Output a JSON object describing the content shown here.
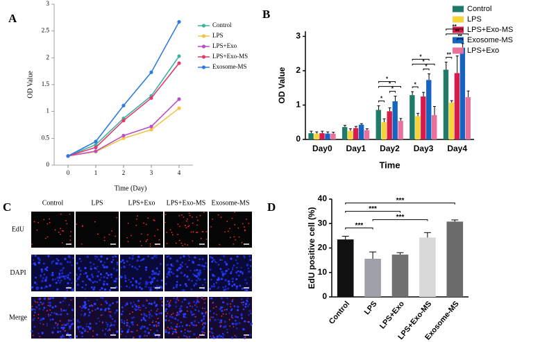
{
  "chart_data": [
    {
      "type": "line",
      "panel": "A",
      "x_label": "Time (Day)",
      "y_label": "OD Value",
      "x": [
        0,
        1,
        2,
        3,
        4
      ],
      "xlim": [
        -0.5,
        4.5
      ],
      "xticks": [
        0,
        1,
        2,
        3,
        4
      ],
      "ylim": [
        0,
        3
      ],
      "yticks": [
        0,
        0.5,
        1,
        1.5,
        2,
        2.5,
        3
      ],
      "legend": "upper-left",
      "series": [
        {
          "name": "Control",
          "color": "#3cb3a0",
          "values": [
            0.17,
            0.38,
            0.87,
            1.29,
            2.03
          ]
        },
        {
          "name": "LPS",
          "color": "#f5c242",
          "values": [
            0.17,
            0.25,
            0.5,
            0.66,
            1.06
          ]
        },
        {
          "name": "LPS+Exo",
          "color": "#b94fc4",
          "values": [
            0.17,
            0.26,
            0.55,
            0.72,
            1.23
          ]
        },
        {
          "name": "LPS+Exo-MS",
          "color": "#e23a6a",
          "values": [
            0.17,
            0.33,
            0.83,
            1.25,
            1.9
          ]
        },
        {
          "name": "Exosome-MS",
          "color": "#2e7be0",
          "values": [
            0.17,
            0.44,
            1.11,
            1.73,
            2.67
          ]
        }
      ]
    },
    {
      "type": "grouped-bar",
      "panel": "B",
      "x_label": "Time",
      "y_label": "OD Value",
      "categories": [
        "Day0",
        "Day1",
        "Day2",
        "Day3",
        "Day4"
      ],
      "ylim": [
        0,
        3.15
      ],
      "yticks": [
        0,
        1,
        2,
        3
      ],
      "legend": "upper-right",
      "series": [
        {
          "name": "Control",
          "color": "#1f7a68",
          "values": [
            0.18,
            0.36,
            0.86,
            1.29,
            2.03
          ],
          "errors": [
            0.06,
            0.05,
            0.12,
            0.1,
            0.22
          ]
        },
        {
          "name": "LPS",
          "color": "#f5d33a",
          "values": [
            0.17,
            0.25,
            0.5,
            0.68,
            1.07
          ],
          "errors": [
            0.05,
            0.06,
            0.1,
            0.08,
            0.06
          ]
        },
        {
          "name": "LPS+Exo-MS",
          "color": "#d81b4a",
          "values": [
            0.18,
            0.33,
            0.82,
            1.25,
            1.93
          ],
          "errors": [
            0.06,
            0.05,
            0.1,
            0.12,
            0.5
          ]
        },
        {
          "name": "Exosome-MS",
          "color": "#1565c0",
          "values": [
            0.17,
            0.43,
            1.11,
            1.73,
            2.67
          ],
          "errors": [
            0.05,
            0.03,
            0.15,
            0.18,
            0.12
          ]
        },
        {
          "name": "LPS+Exo",
          "color": "#e8709a",
          "values": [
            0.17,
            0.27,
            0.54,
            0.71,
            1.23
          ],
          "errors": [
            0.04,
            0.04,
            0.07,
            0.25,
            0.18
          ]
        }
      ],
      "brackets": [
        {
          "text": "*",
          "category": "Day2",
          "from": "LPS+Exo-MS",
          "to": "Exosome-MS"
        },
        {
          "text": "*",
          "category": "Day2",
          "from": "Control",
          "to": "LPS"
        },
        {
          "text": "*",
          "category": "Day2",
          "from": "Control",
          "to": "LPS+Exo"
        },
        {
          "text": "*",
          "category": "Day2",
          "from": "Control",
          "to": "Exosome-MS"
        },
        {
          "text": "*",
          "category": "Day3",
          "from": "LPS+Exo-MS",
          "to": "Exosome-MS"
        },
        {
          "text": "*",
          "category": "Day3",
          "from": "Control",
          "to": "LPS"
        },
        {
          "text": "*",
          "category": "Day3",
          "from": "Control",
          "to": "LPS+Exo"
        },
        {
          "text": "*",
          "category": "Day3",
          "from": "Control",
          "to": "Exosome-MS"
        },
        {
          "text": "**",
          "category": "Day4",
          "from": "LPS+Exo-MS",
          "to": "Exosome-MS"
        },
        {
          "text": "**",
          "category": "Day4",
          "from": "Control",
          "to": "LPS"
        },
        {
          "text": "**",
          "category": "Day4",
          "from": "Control",
          "to": "LPS+Exo"
        },
        {
          "text": "**",
          "category": "Day4",
          "from": "Control",
          "to": "Exosome-MS"
        }
      ]
    },
    {
      "type": "bar",
      "panel": "D",
      "y_label": "EdU positive cell (%)",
      "categories": [
        "Control",
        "LPS",
        "LPS+Exo",
        "LPS+Exo-MS",
        "Exosome-MS"
      ],
      "values": [
        23.5,
        15.6,
        17.3,
        24.3,
        30.8
      ],
      "errors": [
        1.3,
        2.8,
        0.8,
        2.0,
        0.7
      ],
      "colors": [
        "#111111",
        "#a0a0a8",
        "#707070",
        "#d9d9d9",
        "#6b6b6b"
      ],
      "ylim": [
        0,
        40
      ],
      "yticks": [
        0,
        10,
        20,
        30,
        40
      ],
      "brackets": [
        {
          "text": "***",
          "from": "Control",
          "to": "LPS"
        },
        {
          "text": "***",
          "from": "LPS",
          "to": "LPS+Exo-MS"
        },
        {
          "text": "***",
          "from": "Control",
          "to": "LPS+Exo"
        },
        {
          "text": "***",
          "from": "Control",
          "to": "Exosome-MS"
        }
      ]
    }
  ],
  "image_panel": {
    "panel": "C",
    "columns": [
      "Control",
      "LPS",
      "LPS+Exo",
      "LPS+Exo-MS",
      "Exosome-MS"
    ],
    "rows": [
      "EdU",
      "DAPI",
      "Merge"
    ]
  }
}
